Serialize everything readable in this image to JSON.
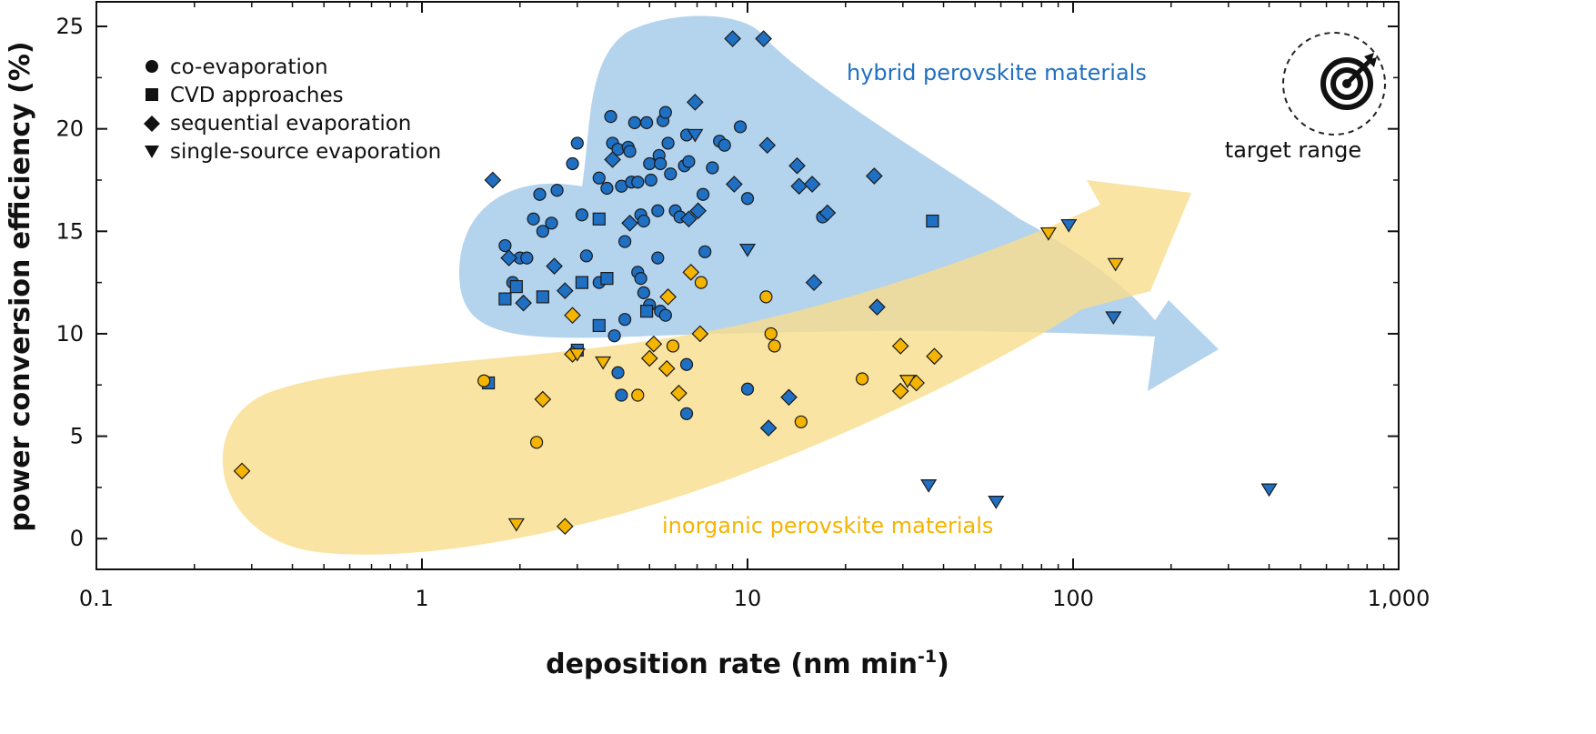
{
  "chart_data": {
    "type": "scatter",
    "title": "",
    "xlabel": "deposition rate (nm min",
    "xlabel_sup": "-1",
    "xlabel_close": ")",
    "ylabel": "power conversion efficiency (%)",
    "xscale": "log",
    "xlim": [
      0.1,
      1000
    ],
    "ylim": [
      -1.5,
      26.2
    ],
    "x_ticks": [
      0.1,
      1,
      10,
      100,
      1000
    ],
    "x_tick_labels": [
      "0.1",
      "1",
      "10",
      "100",
      "1,000"
    ],
    "y_ticks": [
      0,
      5,
      10,
      15,
      20,
      25
    ],
    "y_tick_labels": [
      "0",
      "5",
      "10",
      "15",
      "20",
      "25"
    ],
    "grid": false,
    "legend_position": "top-left",
    "legend": [
      {
        "marker": "circle",
        "label": "co-evaporation"
      },
      {
        "marker": "square",
        "label": "CVD approaches"
      },
      {
        "marker": "diamond",
        "label": "sequential evaporation"
      },
      {
        "marker": "triangle-down",
        "label": "single-source evaporation"
      }
    ],
    "colors": {
      "hybrid": "#1f6fc2",
      "inorganic": "#f4b400",
      "hybrid_region": "#a7cbea",
      "inorganic_region": "#f9dd8c"
    },
    "annotations": {
      "hybrid": "hybrid perovskite materials",
      "inorganic": "inorganic perovskite materials",
      "target": "target range"
    },
    "series": [
      {
        "material": "hybrid",
        "marker": "circle",
        "points": [
          [
            1.8,
            14.3
          ],
          [
            1.9,
            12.5
          ],
          [
            2.0,
            13.7
          ],
          [
            2.1,
            13.7
          ],
          [
            2.2,
            15.6
          ],
          [
            2.3,
            16.8
          ],
          [
            2.35,
            15.0
          ],
          [
            2.5,
            15.4
          ],
          [
            2.6,
            17.0
          ],
          [
            2.9,
            18.3
          ],
          [
            3.0,
            19.3
          ],
          [
            3.1,
            15.8
          ],
          [
            3.2,
            13.8
          ],
          [
            3.5,
            17.6
          ],
          [
            3.7,
            17.1
          ],
          [
            3.8,
            20.6
          ],
          [
            3.85,
            19.3
          ],
          [
            4.0,
            19.0
          ],
          [
            4.1,
            17.2
          ],
          [
            4.3,
            19.1
          ],
          [
            4.35,
            18.9
          ],
          [
            4.4,
            17.4
          ],
          [
            4.5,
            20.3
          ],
          [
            4.6,
            17.4
          ],
          [
            4.7,
            15.8
          ],
          [
            4.8,
            15.5
          ],
          [
            4.9,
            20.3
          ],
          [
            5.0,
            18.3
          ],
          [
            5.05,
            17.5
          ],
          [
            5.3,
            16.0
          ],
          [
            5.35,
            18.7
          ],
          [
            5.4,
            18.3
          ],
          [
            5.5,
            20.4
          ],
          [
            5.6,
            20.8
          ],
          [
            5.7,
            19.3
          ],
          [
            5.8,
            17.8
          ],
          [
            6.0,
            16.0
          ],
          [
            6.2,
            15.7
          ],
          [
            6.4,
            18.2
          ],
          [
            6.5,
            19.7
          ],
          [
            6.6,
            18.4
          ],
          [
            7.3,
            16.8
          ],
          [
            7.8,
            18.1
          ],
          [
            8.2,
            19.4
          ],
          [
            8.5,
            19.2
          ],
          [
            9.5,
            20.1
          ],
          [
            10.0,
            16.6
          ],
          [
            4.2,
            14.5
          ],
          [
            4.6,
            13.0
          ],
          [
            4.7,
            12.7
          ],
          [
            4.8,
            12.0
          ],
          [
            5.0,
            11.4
          ],
          [
            5.3,
            13.7
          ],
          [
            5.4,
            11.1
          ],
          [
            5.6,
            10.9
          ],
          [
            3.5,
            12.5
          ],
          [
            3.9,
            9.9
          ],
          [
            4.2,
            10.7
          ],
          [
            7.4,
            14.0
          ],
          [
            6.5,
            8.5
          ],
          [
            4.0,
            8.1
          ],
          [
            4.1,
            7.0
          ],
          [
            10.0,
            7.3
          ],
          [
            6.5,
            6.1
          ],
          [
            17.0,
            15.7
          ]
        ]
      },
      {
        "material": "hybrid",
        "marker": "square",
        "points": [
          [
            1.8,
            11.7
          ],
          [
            1.95,
            12.3
          ],
          [
            2.35,
            11.8
          ],
          [
            3.1,
            12.5
          ],
          [
            3.5,
            15.6
          ],
          [
            3.7,
            12.7
          ],
          [
            3.5,
            10.4
          ],
          [
            4.9,
            11.1
          ],
          [
            3.0,
            9.2
          ],
          [
            1.6,
            7.6
          ],
          [
            37.0,
            15.5
          ]
        ]
      },
      {
        "material": "hybrid",
        "marker": "diamond",
        "points": [
          [
            1.65,
            17.5
          ],
          [
            1.85,
            13.7
          ],
          [
            2.05,
            11.5
          ],
          [
            2.55,
            13.3
          ],
          [
            2.75,
            12.1
          ],
          [
            3.85,
            18.5
          ],
          [
            4.35,
            15.4
          ],
          [
            6.9,
            21.3
          ],
          [
            7.05,
            16.0
          ],
          [
            6.6,
            15.6
          ],
          [
            9.0,
            24.4
          ],
          [
            11.2,
            24.4
          ],
          [
            9.1,
            17.3
          ],
          [
            11.5,
            19.2
          ],
          [
            14.2,
            18.2
          ],
          [
            14.4,
            17.2
          ],
          [
            15.8,
            17.3
          ],
          [
            17.6,
            15.9
          ],
          [
            16.0,
            12.5
          ],
          [
            24.5,
            17.7
          ],
          [
            25.0,
            11.3
          ],
          [
            13.4,
            6.9
          ],
          [
            11.6,
            5.4
          ]
        ]
      },
      {
        "material": "hybrid",
        "marker": "triangle-down",
        "points": [
          [
            6.9,
            19.7
          ],
          [
            10.0,
            14.1
          ],
          [
            97.0,
            15.3
          ],
          [
            133.0,
            10.8
          ],
          [
            36.0,
            2.6
          ],
          [
            58.0,
            1.8
          ],
          [
            400.0,
            2.4
          ]
        ]
      },
      {
        "material": "inorganic",
        "marker": "circle",
        "points": [
          [
            1.55,
            7.7
          ],
          [
            2.25,
            4.7
          ],
          [
            4.6,
            7.0
          ],
          [
            5.9,
            9.4
          ],
          [
            7.2,
            12.5
          ],
          [
            11.4,
            11.8
          ],
          [
            11.8,
            10.0
          ],
          [
            12.1,
            9.4
          ],
          [
            14.6,
            5.7
          ],
          [
            22.5,
            7.8
          ]
        ]
      },
      {
        "material": "inorganic",
        "marker": "diamond",
        "points": [
          [
            0.28,
            3.3
          ],
          [
            2.35,
            6.8
          ],
          [
            2.9,
            10.9
          ],
          [
            2.9,
            9.0
          ],
          [
            2.75,
            0.6
          ],
          [
            5.15,
            9.5
          ],
          [
            5.0,
            8.8
          ],
          [
            5.65,
            8.3
          ],
          [
            5.7,
            11.8
          ],
          [
            6.15,
            7.1
          ],
          [
            6.7,
            13.0
          ],
          [
            7.15,
            10.0
          ],
          [
            29.5,
            9.4
          ],
          [
            29.5,
            7.2
          ],
          [
            33.0,
            7.6
          ],
          [
            37.5,
            8.9
          ]
        ]
      },
      {
        "material": "inorganic",
        "marker": "triangle-down",
        "points": [
          [
            1.95,
            0.7
          ],
          [
            3.0,
            9.0
          ],
          [
            3.6,
            8.6
          ],
          [
            31.0,
            7.7
          ],
          [
            84.0,
            14.9
          ],
          [
            135.0,
            13.4
          ]
        ]
      }
    ]
  }
}
